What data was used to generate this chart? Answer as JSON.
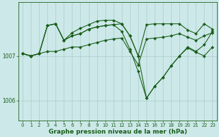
{
  "xlabel": "Graphe pression niveau de la mer (hPa)",
  "x_ticks": [
    0,
    1,
    2,
    3,
    4,
    5,
    6,
    7,
    8,
    9,
    10,
    11,
    12,
    13,
    14,
    15,
    16,
    17,
    18,
    19,
    20,
    21,
    22,
    23
  ],
  "ylim": [
    1005.55,
    1008.2
  ],
  "yticks": [
    1006,
    1007
  ],
  "background_color": "#cce8e8",
  "grid_color": "#aacccc",
  "line_color": "#1a5e1a",
  "series": [
    [
      1007.05,
      1007.0,
      1007.05,
      1007.1,
      1007.1,
      1007.15,
      1007.2,
      1007.2,
      1007.25,
      1007.3,
      1007.35,
      1007.38,
      1007.4,
      1007.1,
      1006.8,
      1007.38,
      1007.4,
      1007.42,
      1007.45,
      1007.5,
      1007.42,
      1007.35,
      1007.45,
      1007.52
    ],
    [
      1007.05,
      1007.0,
      1007.05,
      1007.68,
      1007.72,
      1007.35,
      1007.45,
      1007.5,
      1007.6,
      1007.65,
      1007.68,
      1007.7,
      1007.72,
      1007.45,
      1007.0,
      1007.7,
      1007.72,
      1007.72,
      1007.72,
      1007.72,
      1007.58,
      1007.5,
      1007.72,
      1007.6
    ],
    [
      1007.05,
      1007.0,
      1007.05,
      1007.68,
      1007.72,
      1007.35,
      1007.45,
      1007.5,
      1007.6,
      1007.65,
      1007.68,
      1007.7,
      1007.55,
      1007.15,
      1006.65,
      1006.05,
      1006.32,
      1006.52,
      1006.78,
      1007.0,
      1007.18,
      1007.08,
      1007.0,
      1007.2
    ],
    [
      1007.05,
      1007.0,
      1007.05,
      1007.68,
      1007.72,
      1007.35,
      1007.52,
      1007.62,
      1007.7,
      1007.78,
      1007.8,
      1007.8,
      1007.72,
      1007.45,
      1007.0,
      1006.05,
      1006.32,
      1006.52,
      1006.78,
      1007.0,
      1007.2,
      1007.1,
      1007.25,
      1007.55
    ]
  ],
  "marker": "D",
  "markersize": 2.0,
  "linewidth": 0.8,
  "tick_fontsize": 5.0,
  "xlabel_fontsize": 6.5
}
